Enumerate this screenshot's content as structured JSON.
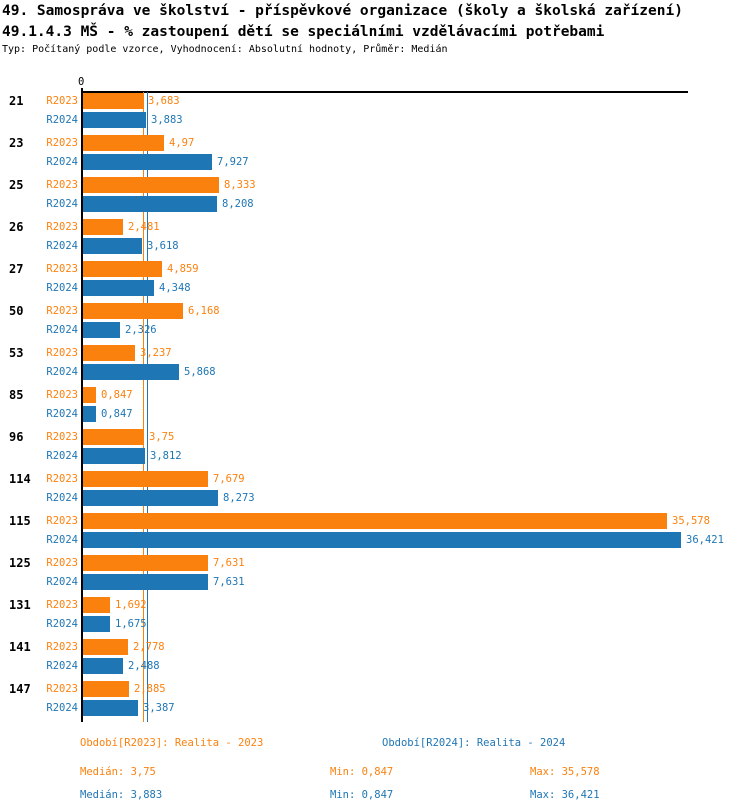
{
  "header": {
    "title_line1": "49. Samospráva ve školství - příspěvkové organizace (školy a školská zařízení)",
    "title_line2": "49.1.4.3 MŠ - % zastoupení dětí se speciálními vzdělávacími potřebami",
    "subtitle": "Typ: Počítaný podle vzorce, Vyhodnocení: Absolutní hodnoty, Průměr: Medián"
  },
  "chart_data": {
    "type": "bar",
    "orientation": "horizontal",
    "title": "49.1.4.3 MŠ - % zastoupení dětí se speciálními vzdělávacími potřebami",
    "axis_origin_label": "0",
    "xlim": [
      0,
      36.5
    ],
    "grid": false,
    "categories": [
      "21",
      "23",
      "25",
      "26",
      "27",
      "50",
      "53",
      "85",
      "96",
      "114",
      "115",
      "125",
      "131",
      "141",
      "147"
    ],
    "series": [
      {
        "name": "R2023",
        "legend": "Období[R2023]: Realita - 2023",
        "color": "#FB810E",
        "values": [
          3.683,
          4.97,
          8.333,
          2.481,
          4.859,
          6.168,
          3.237,
          0.847,
          3.75,
          7.679,
          35.578,
          7.631,
          1.692,
          2.778,
          2.885
        ],
        "value_labels": [
          "3,683",
          "4,97",
          "8,333",
          "2,481",
          "4,859",
          "6,168",
          "3,237",
          "0,847",
          "3,75",
          "7,679",
          "35,578",
          "7,631",
          "1,692",
          "2,778",
          "2,885"
        ],
        "median": 3.75
      },
      {
        "name": "R2024",
        "legend": "Období[R2024]: Realita - 2024",
        "color": "#1F76B4",
        "values": [
          3.883,
          7.927,
          8.208,
          3.618,
          4.348,
          2.326,
          5.868,
          0.847,
          3.812,
          8.273,
          36.421,
          7.631,
          1.675,
          2.488,
          3.387
        ],
        "value_labels": [
          "3,883",
          "7,927",
          "8,208",
          "3,618",
          "4,348",
          "2,326",
          "5,868",
          "0,847",
          "3,812",
          "8,273",
          "36,421",
          "7,631",
          "1,675",
          "2,488",
          "3,387"
        ],
        "median": 3.883
      }
    ],
    "median_lines": [
      {
        "series": "R2023",
        "value": 3.75,
        "color": "#FB810E"
      },
      {
        "series": "R2024",
        "value": 3.883,
        "color": "#1F76B4"
      }
    ]
  },
  "legend": {
    "r2023": "Období[R2023]: Realita - 2023",
    "r2024": "Období[R2024]: Realita - 2024"
  },
  "stats": {
    "r2023": {
      "median": "Medián: 3,75",
      "min": "Min: 0,847",
      "max": "Max: 35,578"
    },
    "r2024": {
      "median": "Medián: 3,883",
      "min": "Min: 0,847",
      "max": "Max: 36,421"
    }
  }
}
